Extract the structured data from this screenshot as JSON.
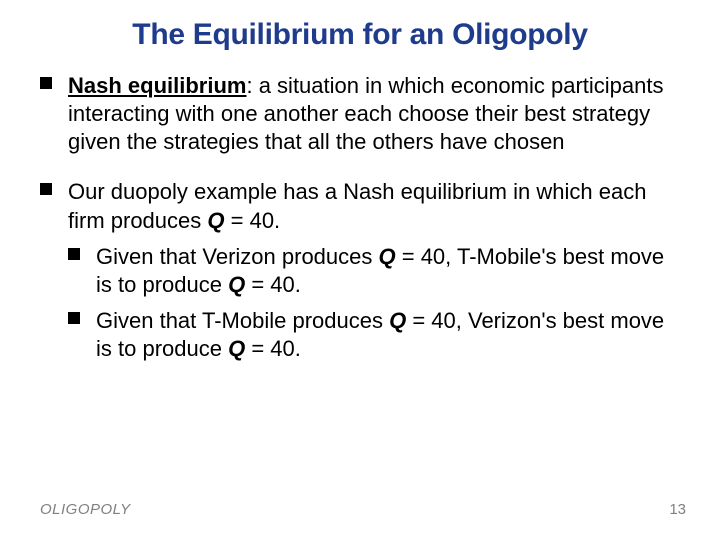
{
  "title": "The Equilibrium for an Oligopoly",
  "bullet1": {
    "term": "Nash equilibrium",
    "rest": ":  a situation in which economic participants interacting with one another each choose their best strategy given the strategies that all the others have chosen"
  },
  "bullet2": {
    "line1_pre": "Our duopoly example has a Nash equilibrium in which each firm produces ",
    "q_label": "Q",
    "eq40": " = 40.",
    "sub1_pre": "Given that Verizon produces ",
    "sub1_mid": " = 40, T-Mobile's best move is to produce ",
    "sub2_pre": "Given that T-Mobile produces ",
    "sub2_mid": " = 40, Verizon's best move is to produce "
  },
  "footer": "OLIGOPOLY",
  "page_number": "13",
  "colors": {
    "title": "#1f3b8c",
    "text": "#000000",
    "footer": "#808080",
    "background": "#ffffff"
  },
  "fonts": {
    "title_size": 30,
    "body_size": 22,
    "footer_size": 15
  }
}
